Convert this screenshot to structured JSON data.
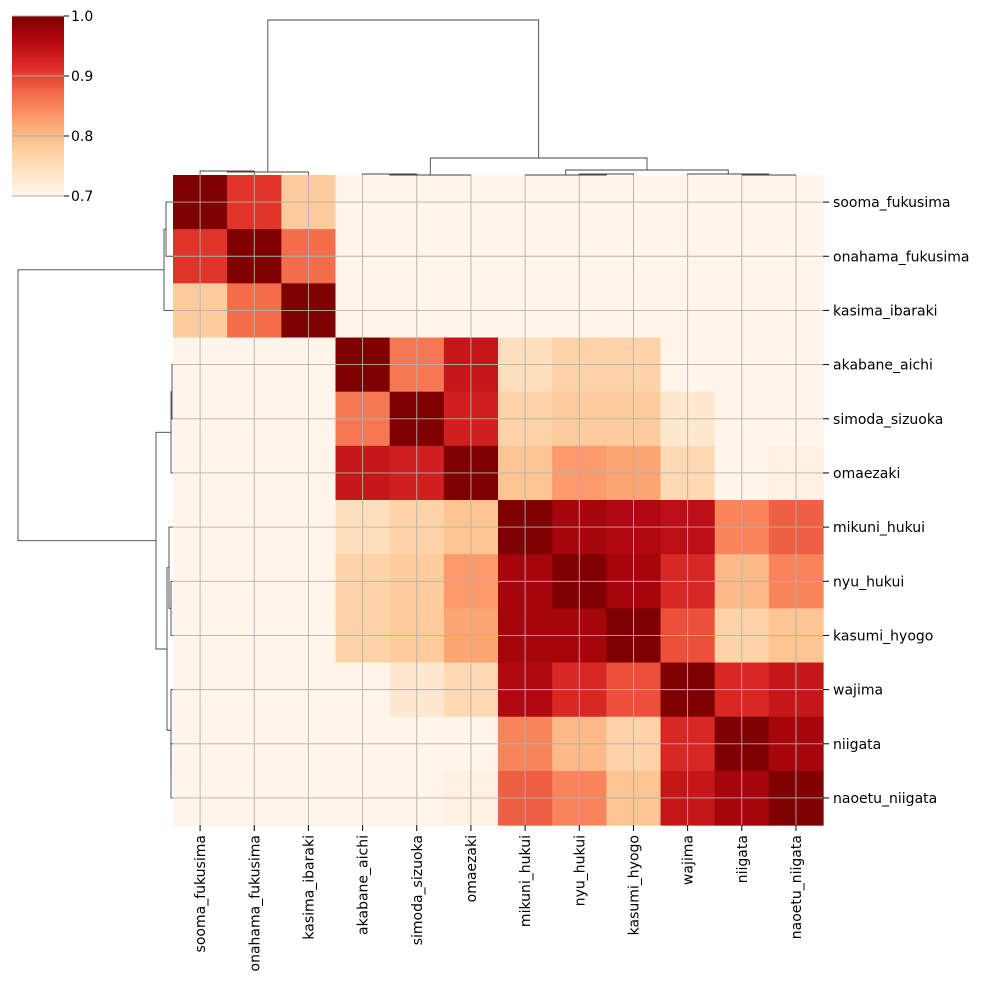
{
  "chart_data": {
    "type": "heatmap",
    "variant": "clustermap",
    "title": "",
    "xlabel": "",
    "ylabel": "",
    "labels": [
      "sooma_fukusima",
      "onahama_fukusima",
      "kasima_ibaraki",
      "akabane_aichi",
      "simoda_sizuoka",
      "omaezaki",
      "mikuni_hukui",
      "nyu_hukui",
      "kasumi_hyogo",
      "wajima",
      "niigata",
      "naoetu_niigata"
    ],
    "values": [
      [
        1.0,
        0.91,
        0.78,
        0.7,
        0.7,
        0.7,
        0.7,
        0.7,
        0.7,
        0.7,
        0.7,
        0.7
      ],
      [
        0.91,
        1.0,
        0.87,
        0.7,
        0.7,
        0.7,
        0.7,
        0.7,
        0.7,
        0.7,
        0.7,
        0.7
      ],
      [
        0.78,
        0.87,
        1.0,
        0.7,
        0.7,
        0.7,
        0.7,
        0.7,
        0.7,
        0.7,
        0.7,
        0.7
      ],
      [
        0.7,
        0.7,
        0.7,
        1.0,
        0.86,
        0.94,
        0.75,
        0.77,
        0.77,
        0.7,
        0.7,
        0.7
      ],
      [
        0.7,
        0.7,
        0.7,
        0.86,
        1.0,
        0.93,
        0.77,
        0.78,
        0.78,
        0.73,
        0.7,
        0.7
      ],
      [
        0.7,
        0.7,
        0.7,
        0.94,
        0.93,
        1.0,
        0.79,
        0.83,
        0.82,
        0.76,
        0.7,
        0.71
      ],
      [
        0.7,
        0.7,
        0.7,
        0.75,
        0.77,
        0.79,
        1.0,
        0.97,
        0.96,
        0.95,
        0.85,
        0.88
      ],
      [
        0.7,
        0.7,
        0.7,
        0.77,
        0.78,
        0.83,
        0.97,
        1.0,
        0.97,
        0.92,
        0.8,
        0.85
      ],
      [
        0.7,
        0.7,
        0.7,
        0.77,
        0.78,
        0.82,
        0.97,
        0.97,
        1.0,
        0.89,
        0.77,
        0.79
      ],
      [
        0.7,
        0.7,
        0.7,
        0.7,
        0.73,
        0.76,
        0.96,
        0.92,
        0.89,
        1.0,
        0.92,
        0.94
      ],
      [
        0.7,
        0.7,
        0.7,
        0.7,
        0.7,
        0.7,
        0.85,
        0.8,
        0.77,
        0.92,
        1.0,
        0.97
      ],
      [
        0.7,
        0.7,
        0.7,
        0.7,
        0.7,
        0.71,
        0.88,
        0.85,
        0.79,
        0.94,
        0.97,
        1.0
      ]
    ],
    "colormap": "OrRd_reds",
    "color_stops": [
      "#fff5eb",
      "#fee3c3",
      "#fdc997",
      "#fc9d6a",
      "#f36b4a",
      "#de2d26",
      "#b40811",
      "#7f0000"
    ],
    "vmin": 0.7,
    "vmax": 1.0,
    "colorbar": {
      "ticks": [
        0.7,
        0.8,
        0.9,
        1.0
      ],
      "tick_labels": [
        "0.7",
        "0.8",
        "0.9",
        "1.0"
      ],
      "placement": "top-left"
    },
    "grid": true,
    "dendrograms": [
      "top",
      "left"
    ]
  }
}
